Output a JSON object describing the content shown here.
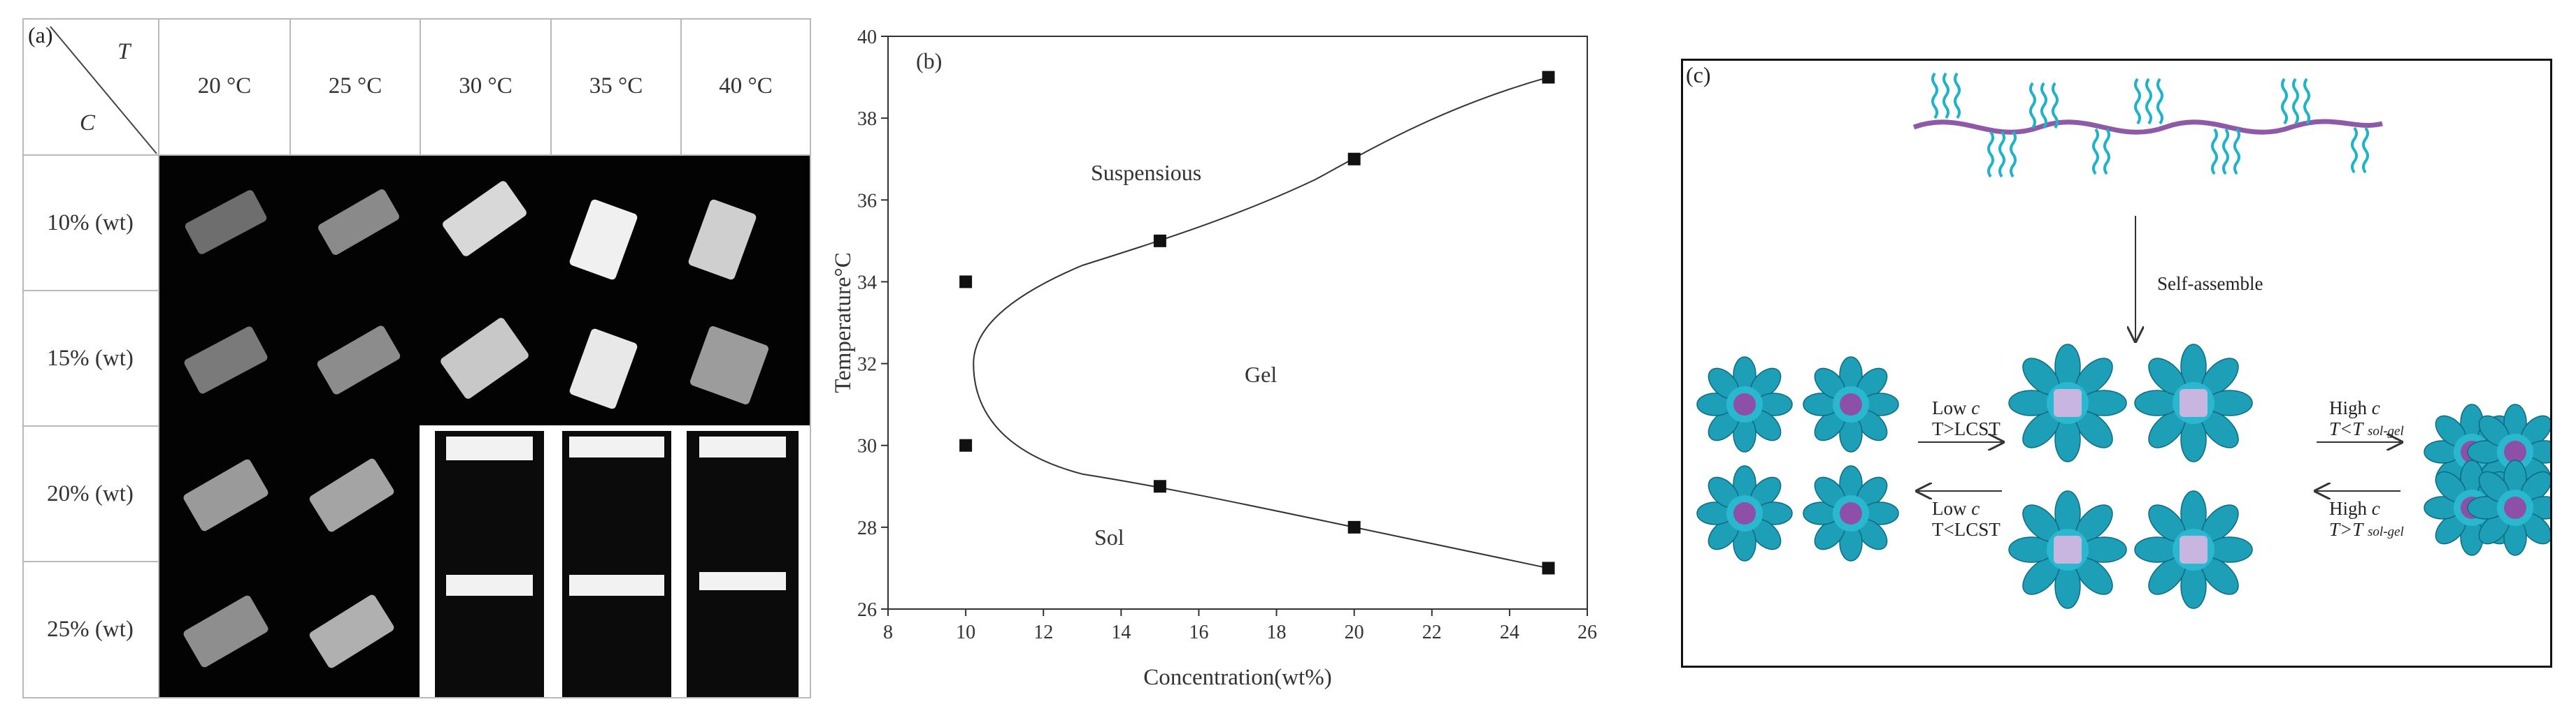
{
  "panel_a": {
    "tag": "(a)",
    "corner": {
      "t_label": "T",
      "c_label": "C"
    },
    "temperatures": [
      "20 °C",
      "25 °C",
      "30 °C",
      "35 °C",
      "40 °C"
    ],
    "concentrations": [
      "10% (wt)",
      "15% (wt)",
      "20% (wt)",
      "25% (wt)"
    ]
  },
  "panel_b": {
    "tag": "(b)",
    "chart_data": {
      "type": "scatter",
      "xlabel": "Concentration(wt%)",
      "ylabel": "Temperature°C",
      "xlim": [
        8,
        26
      ],
      "ylim": [
        26,
        40
      ],
      "xticks": [
        "8",
        "10",
        "12",
        "14",
        "16",
        "18",
        "20",
        "22",
        "24",
        "26"
      ],
      "yticks": [
        "26",
        "28",
        "30",
        "32",
        "34",
        "36",
        "38",
        "40"
      ],
      "series": [
        {
          "x": [
            10,
            15,
            20,
            25
          ],
          "y": [
            34,
            35,
            37,
            39
          ]
        },
        {
          "x": [
            10,
            15,
            20,
            25
          ],
          "y": [
            30,
            29,
            28,
            27
          ]
        }
      ],
      "region_labels": [
        "Suspensious",
        "Gel",
        "Sol"
      ],
      "grid": false
    }
  },
  "panel_c": {
    "tag": "(c)",
    "self_assemble": "Self-assemble",
    "arrow_1_top": {
      "a": "Low ",
      "b": "c",
      "c": "T>LCST"
    },
    "arrow_1_bottom": {
      "a": "Low ",
      "b": "c",
      "c": "T<LCST"
    },
    "arrow_2_top": {
      "a": "High ",
      "b": "c",
      "c": "T<T",
      "d": "sol-gel"
    },
    "arrow_2_bottom": {
      "a": "High ",
      "b": "c",
      "c": "T>T",
      "d": "sol-gel"
    },
    "colors": {
      "polymer_backbone": "#8e5aa8",
      "chains": "#1fb3c9",
      "core": "#b79ad0",
      "flower": "#1d9fb8"
    }
  }
}
